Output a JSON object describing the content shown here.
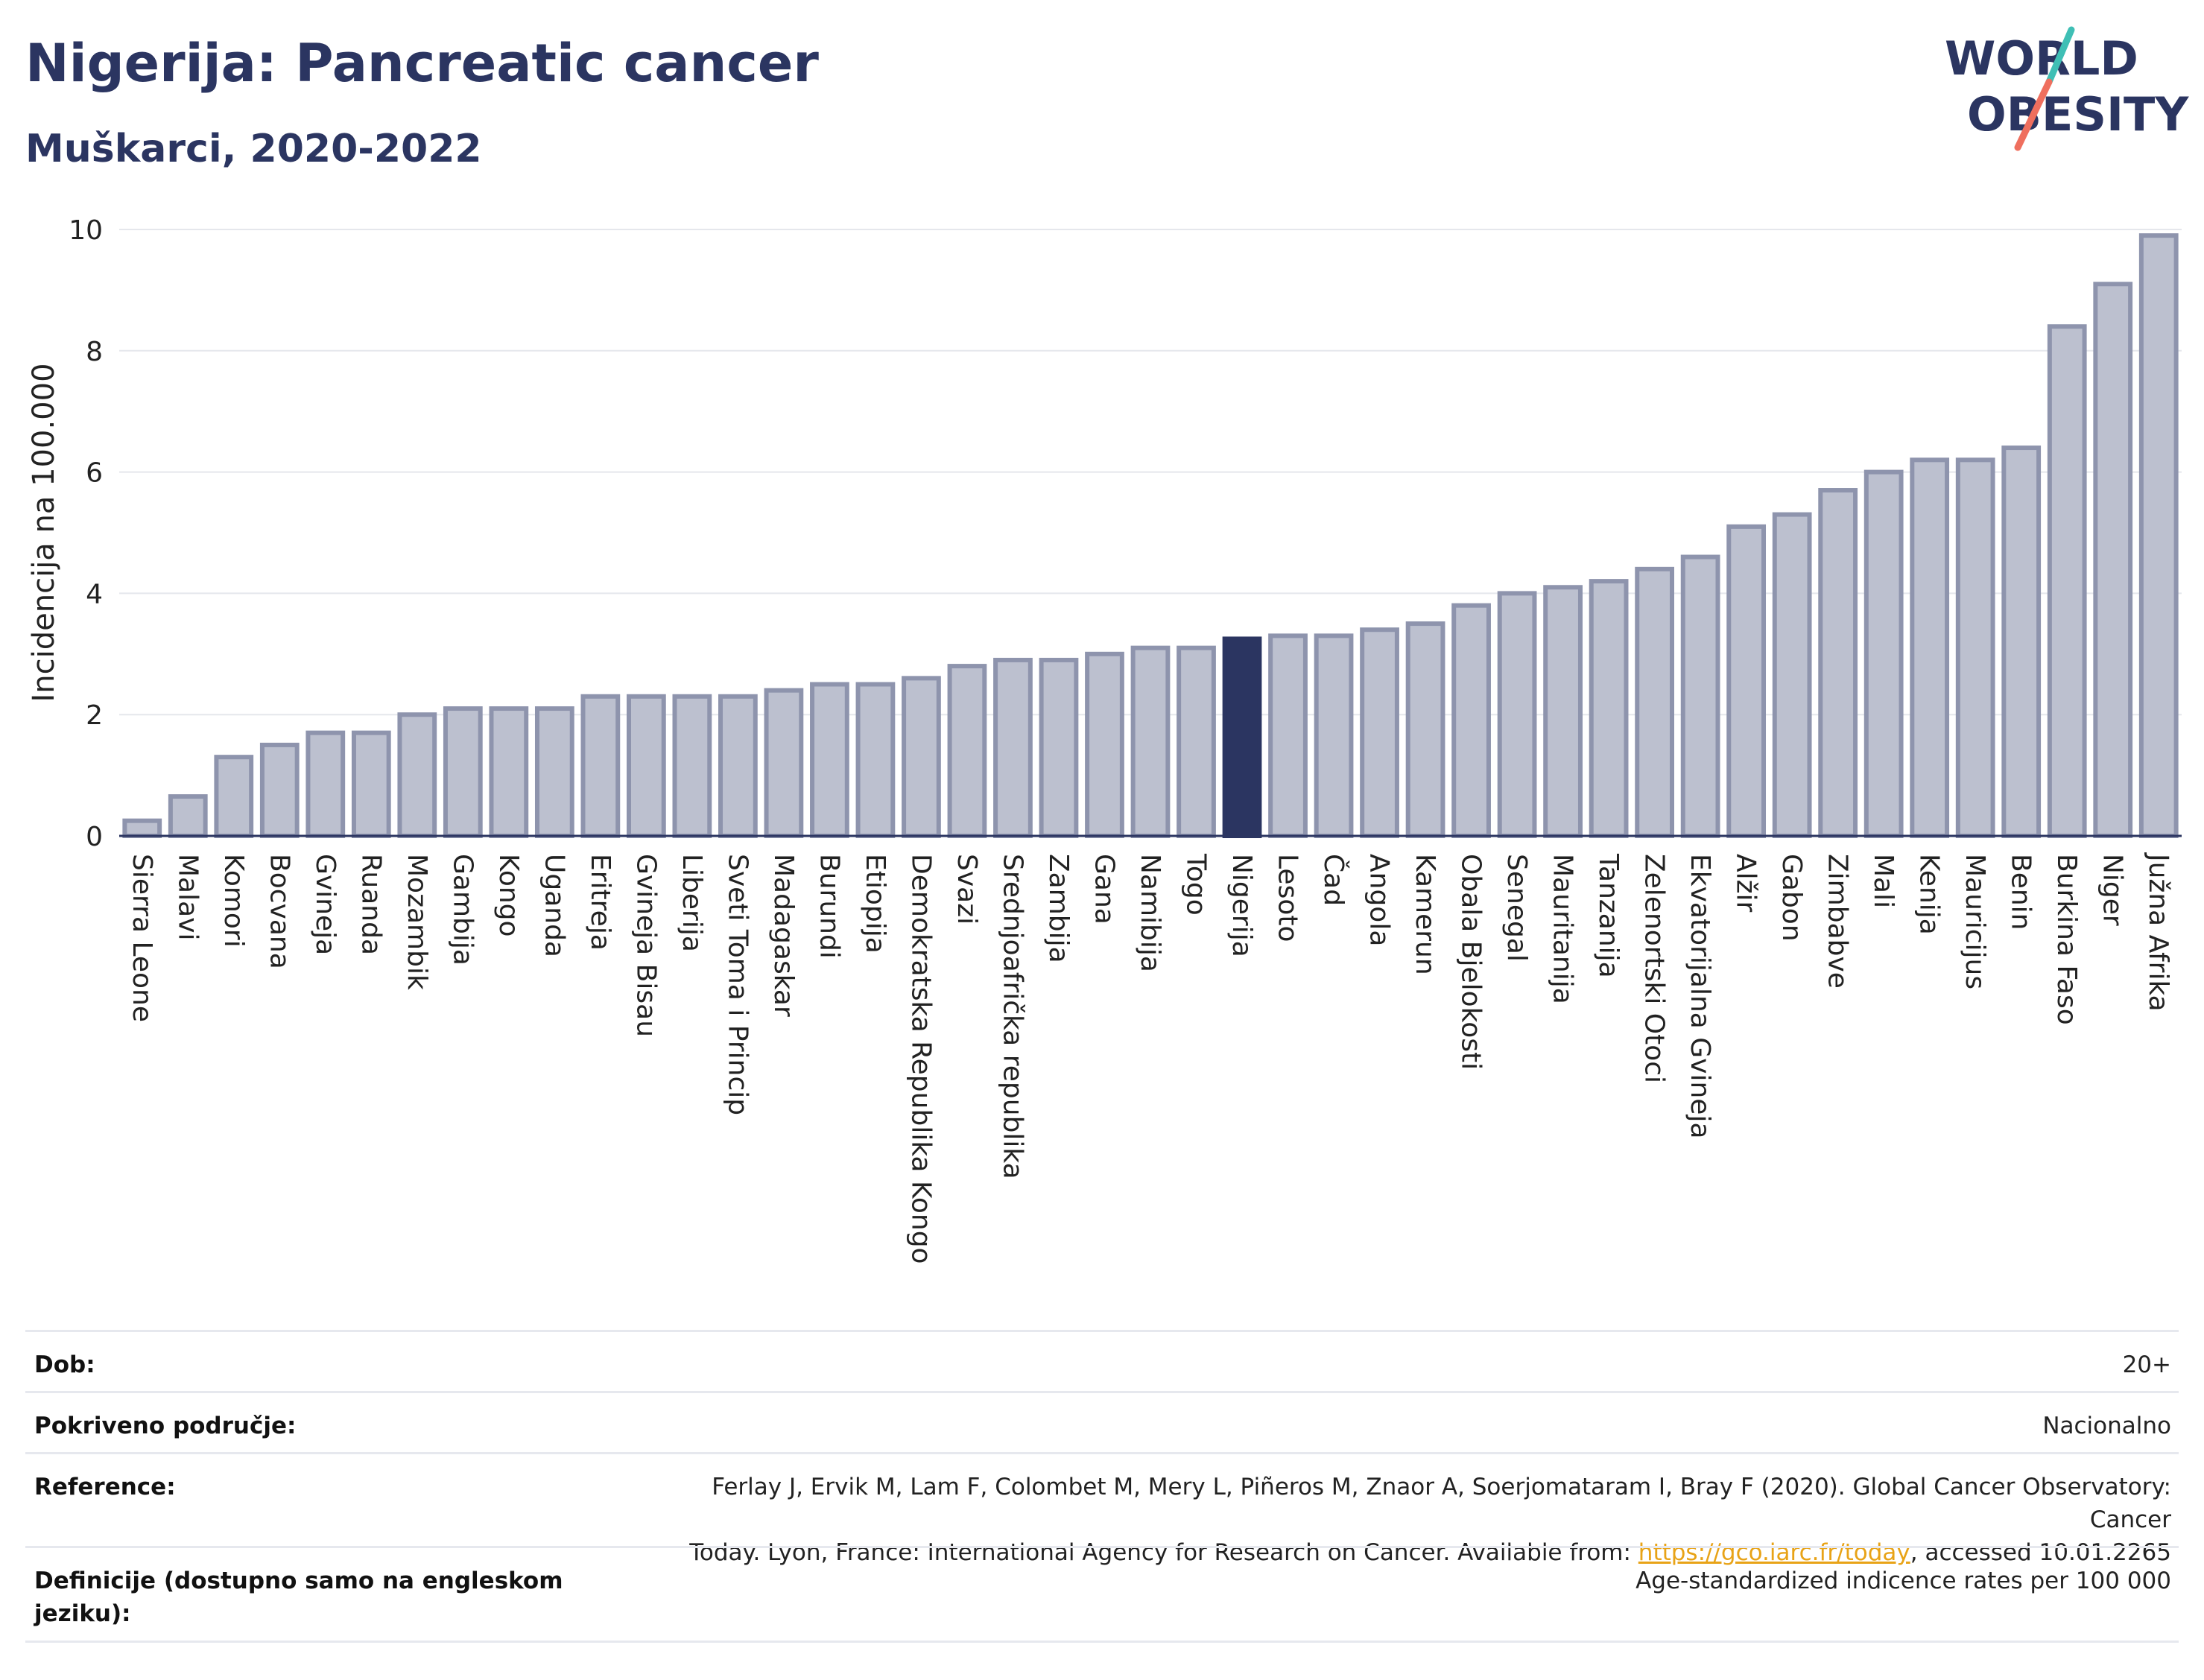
{
  "header": {
    "title": "Nigerija: Pancreatic cancer",
    "subtitle": "Muškarci, 2020-2022"
  },
  "logo": {
    "line1": "WORLD",
    "line2": "OBESITY"
  },
  "chart_data": {
    "type": "bar",
    "ylabel": "Incidencija na 100.000",
    "ylim": [
      0,
      10
    ],
    "yticks": [
      0,
      2,
      4,
      6,
      8,
      10
    ],
    "grid": true,
    "highlight": "Nigerija",
    "colors": {
      "bar": "#bcc0cf",
      "bar_edge": "#8e94ad",
      "highlight": "#2b3561"
    },
    "categories": [
      "Sierra Leone",
      "Malavi",
      "Komori",
      "Bocvana",
      "Gvineja",
      "Ruanda",
      "Mozambik",
      "Gambija",
      "Kongo",
      "Uganda",
      "Eritreja",
      "Gvineja Bisau",
      "Liberija",
      "Sveti Toma i Princip",
      "Madagaskar",
      "Burundi",
      "Etiopija",
      "Demokratska Republika Kongo",
      "Svazi",
      "Srednjoafrička republika",
      "Zambija",
      "Gana",
      "Namibija",
      "Togo",
      "Nigerija",
      "Lesoto",
      "Čad",
      "Angola",
      "Kamerun",
      "Obala Bjelokosti",
      "Senegal",
      "Mauritanija",
      "Tanzanija",
      "Zelenortski Otoci",
      "Ekvatorijalna Gvineja",
      "Alžir",
      "Gabon",
      "Zimbabve",
      "Mali",
      "Kenija",
      "Mauricijus",
      "Benin",
      "Burkina Faso",
      "Niger",
      "Južna Afrika"
    ],
    "values": [
      0.25,
      0.65,
      1.3,
      1.5,
      1.7,
      1.7,
      2.0,
      2.1,
      2.1,
      2.1,
      2.3,
      2.3,
      2.3,
      2.3,
      2.4,
      2.5,
      2.5,
      2.6,
      2.8,
      2.9,
      2.9,
      3.0,
      3.1,
      3.1,
      3.25,
      3.3,
      3.3,
      3.4,
      3.5,
      3.8,
      4.0,
      4.1,
      4.2,
      4.4,
      4.6,
      5.1,
      5.3,
      5.7,
      6.0,
      6.2,
      6.2,
      6.4,
      8.4,
      9.1,
      9.9
    ]
  },
  "meta": {
    "age_label": "Dob:",
    "age_value": "20+",
    "coverage_label": "Pokriveno područje:",
    "coverage_value": "Nacionalno",
    "reference_label": "Reference:",
    "reference_line1": "Ferlay J, Ervik M, Lam F, Colombet M, Mery L, Piñeros M, Znaor A, Soerjomataram I, Bray F (2020). Global Cancer Observatory: Cancer",
    "reference_line2_pre": "Today. Lyon, France: International Agency for Research on Cancer. Available from: ",
    "reference_link": "https://gco.iarc.fr/today",
    "reference_line2_post": ", accessed 10.01.2265",
    "definitions_label": "Definicije (dostupno samo na engleskom jeziku):",
    "definitions_value": "Age-standardized indicence rates per 100 000"
  }
}
